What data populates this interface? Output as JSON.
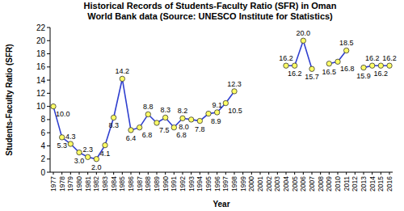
{
  "chart_data": {
    "type": "line",
    "title": "Historical Records of Students-Faculty Ratio (SFR) in Oman",
    "subtitle": "World Bank data (Source: UNESCO Institute for Statistics)",
    "x_label": "Year",
    "y_label": "Students-Faculty Ratio (SFR)",
    "categories": [
      "1977",
      "1978",
      "1979",
      "1980",
      "1981",
      "1982",
      "1983",
      "1984",
      "1985",
      "1986",
      "1987",
      "1988",
      "1989",
      "1990",
      "1991",
      "1992",
      "1993",
      "1994",
      "1995",
      "1996",
      "1997",
      "1998",
      "1999",
      "2000",
      "2001",
      "2002",
      "2003",
      "2004",
      "2005",
      "2006",
      "2007",
      "2008",
      "2009",
      "2010",
      "2011",
      "2012",
      "2013",
      "2014",
      "2015",
      "2016"
    ],
    "values": [
      10.0,
      5.3,
      4.3,
      3.0,
      2.3,
      2.0,
      4.1,
      8.3,
      14.2,
      6.4,
      6.8,
      8.8,
      7.5,
      8.3,
      6.8,
      8.2,
      8.0,
      7.8,
      8.9,
      9.1,
      10.5,
      12.3,
      null,
      null,
      null,
      null,
      null,
      16.2,
      16.2,
      20.0,
      15.7,
      null,
      16.5,
      16.8,
      18.5,
      null,
      15.9,
      16.2,
      16.2,
      16.2
    ],
    "value_labels": [
      "10.0",
      "5.3",
      "4.3",
      "3.0",
      "2.3",
      "2.0",
      "4.1",
      "8.3",
      "14.2",
      "6.4",
      "6.8",
      "8.8",
      "7.5",
      "8.3",
      "6.8",
      "8.2",
      "8.0",
      "7.8",
      "8.9",
      "9.1",
      "10.5",
      "12.3",
      null,
      null,
      null,
      null,
      null,
      "16.2",
      "16.2",
      "20.0",
      "15.7",
      null,
      "16.5",
      "16.8",
      "18.5",
      null,
      "15.9",
      "16.2",
      "16.2",
      "16.2"
    ],
    "ylim": [
      0,
      22
    ],
    "yticks": [
      0,
      2,
      4,
      6,
      8,
      10,
      12,
      14,
      16,
      18,
      20,
      22
    ],
    "color": "#2f3fcf",
    "marker": "circle",
    "data_labels": true,
    "grid": false
  }
}
